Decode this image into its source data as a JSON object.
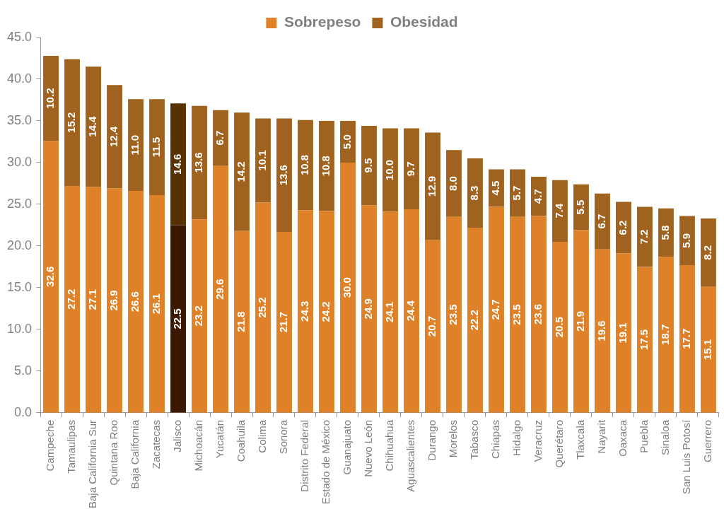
{
  "chart_data": {
    "type": "bar",
    "stacked": true,
    "legend": "top",
    "grid": false,
    "categories": [
      "Campeche",
      "Tamaulipas",
      "Baja California Sur",
      "Quintana Roo",
      "Baja California",
      "Zacatecas",
      "Jalisco",
      "Michoacán",
      "Yucatán",
      "Coahuila",
      "Colima",
      "Sonora",
      "Distrito Federal",
      "Estado de México",
      "Guanajuato",
      "Nuevo León",
      "Chihuahua",
      "Aguascalientes",
      "Durango",
      "Morelos",
      "Tabasco",
      "Chiapas",
      "Hidalgo",
      "Veracruz",
      "Querétaro",
      "Tlaxcala",
      "Nayarit",
      "Oaxaca",
      "Puebla",
      "Sinaloa",
      "San Luis Potosí",
      "Guerrero"
    ],
    "series": [
      {
        "name": "Sobrepeso",
        "color": "#de8128",
        "colors": [
          "#de8128",
          "#de8128",
          "#de8128",
          "#de8128",
          "#de8128",
          "#de8128",
          "#3c1800",
          "#de8128",
          "#de8128",
          "#de8128",
          "#de8128",
          "#de8128",
          "#de8128",
          "#de8128",
          "#de8128",
          "#de8128",
          "#de8128",
          "#de8128",
          "#de8128",
          "#de8128",
          "#de8128",
          "#de8128",
          "#de8128",
          "#de8128",
          "#de8128",
          "#de8128",
          "#de8128",
          "#de8128",
          "#de8128",
          "#de8128",
          "#de8128",
          "#de8128"
        ],
        "values": [
          32.6,
          27.2,
          27.1,
          26.9,
          26.6,
          26.1,
          22.5,
          23.2,
          29.6,
          21.8,
          25.2,
          21.7,
          24.3,
          24.2,
          30.0,
          24.9,
          24.1,
          24.4,
          20.7,
          23.5,
          22.2,
          24.7,
          23.5,
          23.6,
          20.5,
          21.9,
          19.6,
          19.1,
          17.5,
          18.7,
          17.7,
          15.1
        ],
        "value_labels": [
          "32.6",
          "27.2",
          "27.1",
          "26.9",
          "26.6",
          "26.1",
          "22.5",
          "23.2",
          "29.6",
          "21.8",
          "25.2",
          "21.7",
          "24.3",
          "24.2",
          "30.0",
          "24.9",
          "24.1",
          "24.4",
          "20.7",
          "23.5",
          "22.2",
          "24.7",
          "23.5",
          "23.6",
          "20.5",
          "21.9",
          "19.6",
          "19.1",
          "17.5",
          "18.7",
          "17.7",
          "15.1"
        ]
      },
      {
        "name": "Obesidad",
        "color": "#a0621f",
        "colors": [
          "#a0621f",
          "#a0621f",
          "#a0621f",
          "#a0621f",
          "#a0621f",
          "#a0621f",
          "#573200",
          "#a0621f",
          "#a0621f",
          "#a0621f",
          "#a0621f",
          "#a0621f",
          "#a0621f",
          "#a0621f",
          "#a0621f",
          "#a0621f",
          "#a0621f",
          "#a0621f",
          "#a0621f",
          "#a0621f",
          "#a0621f",
          "#a0621f",
          "#a0621f",
          "#a0621f",
          "#a0621f",
          "#a0621f",
          "#a0621f",
          "#a0621f",
          "#a0621f",
          "#a0621f",
          "#a0621f",
          "#a0621f"
        ],
        "values": [
          10.2,
          15.2,
          14.4,
          12.4,
          11.0,
          11.5,
          14.6,
          13.6,
          6.7,
          14.2,
          10.1,
          13.6,
          10.8,
          10.8,
          5.0,
          9.5,
          10.0,
          9.7,
          12.9,
          8.0,
          8.3,
          4.5,
          5.7,
          4.7,
          7.4,
          5.5,
          6.7,
          6.2,
          7.2,
          5.8,
          5.9,
          8.2
        ],
        "value_labels": [
          "10.2",
          "15.2",
          "14.4",
          "12.4",
          "11.0",
          "11.5",
          "14.6",
          "13.6",
          "6.7",
          "14.2",
          "10.1",
          "13.6",
          "10.8",
          "10.8",
          "5.0",
          "9.5",
          "10.0",
          "9.7",
          "12.9",
          "8.0",
          "8.3",
          "4.5",
          "5.7",
          "4.7",
          "7.4",
          "5.5",
          "6.7",
          "6.2",
          "7.2",
          "5.8",
          "5.9",
          "8.2"
        ]
      }
    ],
    "ylim": [
      0,
      45
    ],
    "yticks": [
      {
        "value": 0,
        "label": "0.0"
      },
      {
        "value": 5,
        "label": "5.0"
      },
      {
        "value": 10,
        "label": "10.0"
      },
      {
        "value": 15,
        "label": "15.0"
      },
      {
        "value": 20,
        "label": "20.0"
      },
      {
        "value": 25,
        "label": "25.0"
      },
      {
        "value": 30,
        "label": "30.0"
      },
      {
        "value": 35,
        "label": "35.0"
      },
      {
        "value": 40,
        "label": "40.0"
      },
      {
        "value": 45,
        "label": "45.0"
      }
    ]
  }
}
